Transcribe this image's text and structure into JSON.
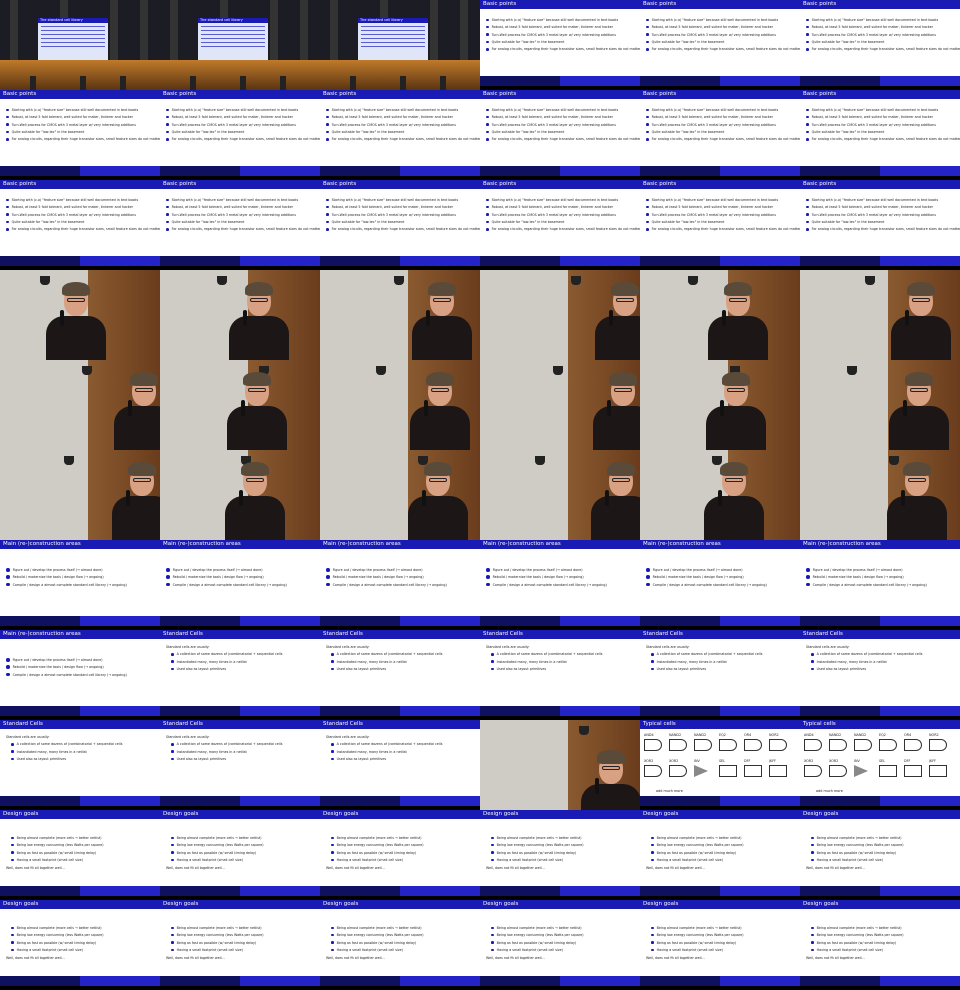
{
  "strings": {
    "basic_title": "Basic points",
    "basic_bullets": [
      "Starting with (c.o) \"feature size\" because still well documented in text books",
      "Robust, at least 5 fold tolerant, well suited for maker, tinkerer and hacker",
      "Turn-Well process for CMOS with 3 metal layer w/ very interesting additions",
      "Quite suitable for \"low-tec\" in the basement",
      "For analog circuits, regarding their huge transistor sizes, small feature sizes do not matter"
    ],
    "areas_title": "Main (re-)construction areas",
    "areas_items": [
      "Figure out / develop the process itself (→ almost done)",
      "Rebuild / modernize the tools / design flow (→ ongoing)",
      "Compile / design a almost complete standard cell library (→ ongoing)"
    ],
    "std_title": "Standard Cells",
    "std_intro": "Standard cells are usually:",
    "std_bullets": [
      "A collection of some dozens of (combinatorial + sequential cells",
      "Instantiated many, many times in a netlist",
      "Used also as layout primitives"
    ],
    "goals_title": "Design goals",
    "goals_bullets": [
      "Being almost complete (more cells → better netlist)",
      "Being low energy consuming (less Watts per square)",
      "Being as fast as possible (w/ small timing delay)",
      "Having a small footprint (small cell size)"
    ],
    "goals_note": "Well, does not fit all together well...",
    "typical_title": "Typical cells",
    "typical_labels": [
      "AND4",
      "NAND2",
      "NAND2",
      "EQ2",
      "OR4",
      "NOR2",
      "XOR2",
      "XOR2",
      "INV",
      "SEL",
      "DFF",
      "JKFF"
    ],
    "typical_caption": "add much more",
    "audience_title": "The standard cell library"
  },
  "rows": [
    [
      "aud",
      "aud",
      "aud",
      "basic",
      "basic",
      "basic"
    ],
    [
      "basic",
      "basic",
      "basic",
      "basic",
      "basic",
      "basic"
    ],
    [
      "basic",
      "basic",
      "basic",
      "basic",
      "basic",
      "basic"
    ],
    [
      "video",
      "video",
      "video",
      "video",
      "video",
      "video"
    ],
    [
      "video",
      "video",
      "video",
      "video",
      "video",
      "video"
    ],
    [
      "video",
      "video",
      "video",
      "video",
      "video",
      "video"
    ],
    [
      "areas",
      "areas",
      "areas",
      "areas",
      "areas",
      "areas"
    ],
    [
      "areas",
      "std",
      "std",
      "std",
      "std",
      "std"
    ],
    [
      "std",
      "std",
      "std",
      "videocells",
      "typical",
      "typical"
    ],
    [
      "goals",
      "goals",
      "goals",
      "goals",
      "goals",
      "goals"
    ],
    [
      "goals",
      "goals",
      "goals",
      "goals",
      "goals",
      "goals"
    ]
  ],
  "colors": {
    "slide_title_bar": "#1a1ab4",
    "text": "#222222",
    "stage": "#c07a2a"
  }
}
